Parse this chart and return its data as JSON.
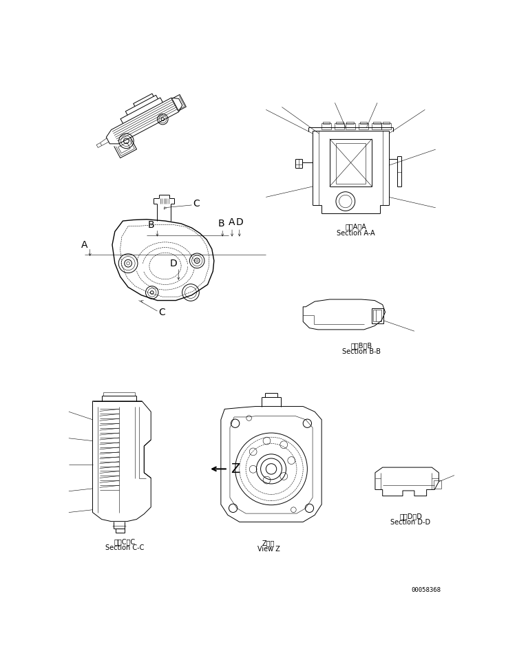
{
  "bg_color": "#ffffff",
  "line_color": "#000000",
  "fig_width": 7.35,
  "fig_height": 9.75,
  "dpi": 100,
  "labels": {
    "section_aa_jp": "断面A－A",
    "section_aa_en": "Section A-A",
    "section_bb_jp": "断面B－B",
    "section_bb_en": "Section B-B",
    "section_cc_jp": "断面C－C",
    "section_cc_en": "Section C-C",
    "section_dd_jp": "断面D－D",
    "section_dd_en": "Section D-D",
    "view_z_jp": "Z　視",
    "view_z_en": "View Z",
    "part_number": "00058368"
  },
  "font_size_label": 7.0,
  "font_size_pn": 6.5,
  "lw_thin": 0.4,
  "lw_med": 0.7,
  "lw_thick": 1.0
}
